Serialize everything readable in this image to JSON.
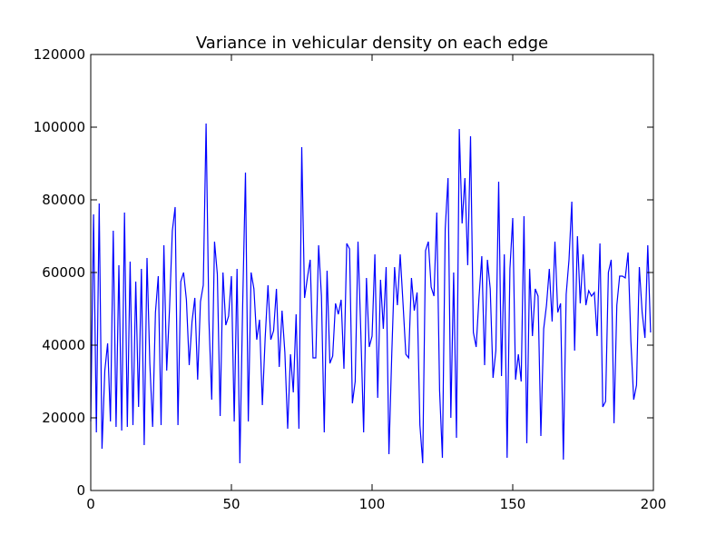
{
  "chart_data": {
    "type": "line",
    "title": "Variance in vehicular density on each edge",
    "xlabel": "",
    "ylabel": "",
    "xlim": [
      0,
      200
    ],
    "ylim": [
      0,
      120000
    ],
    "xticks": [
      0,
      50,
      100,
      150,
      200
    ],
    "yticks": [
      0,
      20000,
      40000,
      60000,
      80000,
      100000,
      120000
    ],
    "grid": false,
    "legend": "none",
    "line_color": "#0000ff",
    "series": [
      {
        "x": [
          0,
          1,
          2,
          3,
          4,
          5,
          6,
          7,
          8,
          9,
          10,
          11,
          12,
          13,
          14,
          15,
          16,
          17,
          18,
          19,
          20,
          21,
          22,
          23,
          24,
          25,
          26,
          27,
          28,
          29,
          30,
          31,
          32,
          33,
          34,
          35,
          36,
          37,
          38,
          39,
          40,
          41,
          42,
          43,
          44,
          45,
          46,
          47,
          48,
          49,
          50,
          51,
          52,
          53,
          54,
          55,
          56,
          57,
          58,
          59,
          60,
          61,
          62,
          63,
          64,
          65,
          66,
          67,
          68,
          69,
          70,
          71,
          72,
          73,
          74,
          75,
          76,
          77,
          78,
          79,
          80,
          81,
          82,
          83,
          84,
          85,
          86,
          87,
          88,
          89,
          90,
          91,
          92,
          93,
          94,
          95,
          96,
          97,
          98,
          99,
          100,
          101,
          102,
          103,
          104,
          105,
          106,
          107,
          108,
          109,
          110,
          111,
          112,
          113,
          114,
          115,
          116,
          117,
          118,
          119,
          120,
          121,
          122,
          123,
          124,
          125,
          126,
          127,
          128,
          129,
          130,
          131,
          132,
          133,
          134,
          135,
          136,
          137,
          138,
          139,
          140,
          141,
          142,
          143,
          144,
          145,
          146,
          147,
          148,
          149,
          150,
          151,
          152,
          153,
          154,
          155,
          156,
          157,
          158,
          159,
          160,
          161,
          162,
          163,
          164,
          165,
          166,
          167,
          168,
          169,
          170,
          171,
          172,
          173,
          174,
          175,
          176,
          177,
          178,
          179,
          180,
          181,
          182,
          183,
          184,
          185,
          186,
          187,
          188,
          189,
          190,
          191,
          192,
          193,
          194,
          195,
          196,
          197,
          198,
          199
        ],
        "values": [
          19000,
          76000,
          16000,
          79000,
          11500,
          33000,
          40500,
          19000,
          71500,
          17500,
          62000,
          16500,
          76500,
          17500,
          63000,
          18000,
          57500,
          23000,
          61000,
          12500,
          64000,
          35000,
          17500,
          49000,
          59000,
          18000,
          67500,
          33000,
          50000,
          71500,
          78000,
          18000,
          57500,
          60000,
          52500,
          34500,
          46500,
          53000,
          30500,
          52000,
          56500,
          101000,
          47000,
          25000,
          68500,
          59500,
          20500,
          60000,
          45500,
          48000,
          59000,
          19000,
          61000,
          7500,
          51000,
          87500,
          19000,
          60000,
          55500,
          41500,
          47000,
          23500,
          42000,
          56500,
          41500,
          44000,
          55500,
          34000,
          49500,
          38000,
          17000,
          37500,
          27000,
          48500,
          17000,
          94500,
          53000,
          58500,
          63500,
          36500,
          36500,
          67500,
          53500,
          16000,
          60500,
          35000,
          37000,
          51500,
          48500,
          52500,
          33500,
          68000,
          66500,
          24000,
          30000,
          68500,
          43500,
          16000,
          58500,
          39500,
          42500,
          65000,
          25500,
          58000,
          44500,
          61500,
          10000,
          37500,
          61500,
          51000,
          65000,
          51500,
          37500,
          36500,
          58500,
          49500,
          54500,
          18000,
          7500,
          66000,
          68500,
          56000,
          53500,
          76500,
          27500,
          9000,
          72000,
          86000,
          20000,
          60000,
          14500,
          99500,
          73500,
          86000,
          62000,
          97500,
          43500,
          39500,
          53000,
          64500,
          34500,
          63500,
          55500,
          31000,
          38500,
          85000,
          31500,
          65000,
          9000,
          61000,
          75000,
          30500,
          37500,
          30000,
          75500,
          13000,
          61000,
          42500,
          55500,
          53500,
          15000,
          44500,
          51000,
          61000,
          46500,
          68500,
          49000,
          51500,
          8500,
          54000,
          63500,
          79500,
          38500,
          70000,
          51500,
          65000,
          51000,
          55000,
          53500,
          54500,
          42500,
          68000,
          23000,
          24500,
          60000,
          63500,
          18500,
          51000,
          59000,
          59000,
          58500,
          65500,
          41000,
          25000,
          29000,
          61500,
          49000,
          42000,
          67500,
          43500
        ]
      }
    ]
  }
}
